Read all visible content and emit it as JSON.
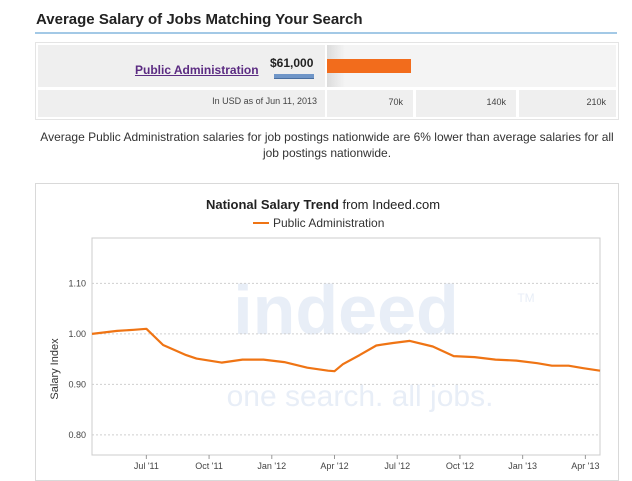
{
  "header": {
    "title": "Average Salary of Jobs Matching Your Search"
  },
  "salary_table": {
    "job_title": "Public Administration",
    "salary_label": "$61,000",
    "salary_value": 61000,
    "bar_axis_max": 210000,
    "note": "In USD as of Jun 11, 2013",
    "ticks": [
      "70k",
      "140k",
      "210k"
    ],
    "bar_color": "#f26c1c",
    "marker_color": "#7096c8"
  },
  "comparison_text": "Average Public Administration salaries for job postings nationwide are 6% lower than average salaries for all job postings nationwide.",
  "chart_data": {
    "type": "line",
    "title_main": "National Salary Trend",
    "title_sub": " from Indeed.com",
    "ylabel": "Salary Index",
    "xlabel": "",
    "ylim": [
      0.76,
      1.19
    ],
    "yticks": [
      0.8,
      0.9,
      1.0,
      1.1
    ],
    "ytick_labels": [
      "0.80",
      "0.90",
      "1.00",
      "1.10"
    ],
    "x_start_month": 0,
    "x_end_month": 24.3,
    "xticks": [
      {
        "label": "Jul '11",
        "month": 2.6
      },
      {
        "label": "Oct '11",
        "month": 5.6
      },
      {
        "label": "Jan '12",
        "month": 8.6
      },
      {
        "label": "Apr '12",
        "month": 11.6
      },
      {
        "label": "Jul '12",
        "month": 14.6
      },
      {
        "label": "Oct '12",
        "month": 17.6
      },
      {
        "label": "Jan '13",
        "month": 20.6
      },
      {
        "label": "Apr '13",
        "month": 23.6
      }
    ],
    "grid": true,
    "legend_position": "top-center",
    "series": [
      {
        "name": "Public Administration",
        "color": "#ef7414",
        "points": [
          [
            0.0,
            1.0
          ],
          [
            1.2,
            1.006
          ],
          [
            2.0,
            1.008
          ],
          [
            2.6,
            1.01
          ],
          [
            3.4,
            0.978
          ],
          [
            4.5,
            0.958
          ],
          [
            5.0,
            0.951
          ],
          [
            6.2,
            0.943
          ],
          [
            7.2,
            0.949
          ],
          [
            8.2,
            0.949
          ],
          [
            9.2,
            0.944
          ],
          [
            10.3,
            0.933
          ],
          [
            11.3,
            0.927
          ],
          [
            11.6,
            0.926
          ],
          [
            12.0,
            0.94
          ],
          [
            12.8,
            0.958
          ],
          [
            13.6,
            0.977
          ],
          [
            14.4,
            0.982
          ],
          [
            15.2,
            0.986
          ],
          [
            16.3,
            0.975
          ],
          [
            17.3,
            0.956
          ],
          [
            18.3,
            0.954
          ],
          [
            19.3,
            0.949
          ],
          [
            20.3,
            0.947
          ],
          [
            21.3,
            0.942
          ],
          [
            22.0,
            0.937
          ],
          [
            22.8,
            0.937
          ],
          [
            23.5,
            0.932
          ],
          [
            24.3,
            0.927
          ]
        ]
      }
    ]
  },
  "watermark": {
    "brand": "indeed",
    "trademark": "TM",
    "tagline": "one search. all jobs."
  }
}
